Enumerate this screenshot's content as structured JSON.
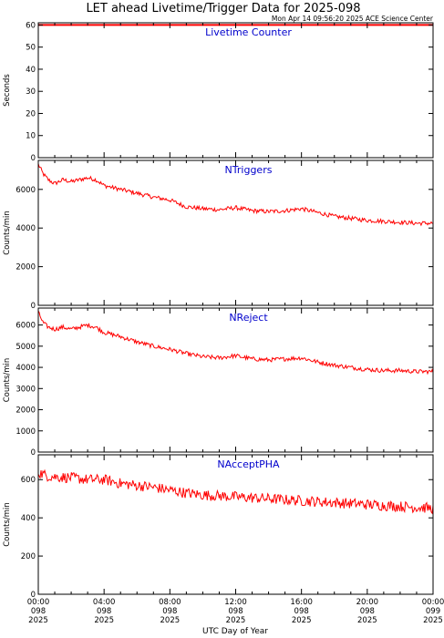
{
  "header": {
    "title": "LET ahead Livetime/Trigger Data for 2025-098",
    "timestamp": "Mon Apr 14 09:56:20 2025 ACE Science Center"
  },
  "colors": {
    "axis": "#000000",
    "series": "#ff0000",
    "panel_label": "#0000cc"
  },
  "chart_data": [
    {
      "type": "line",
      "title": "Livetime Counter",
      "ylabel": "Seconds",
      "ylim": [
        0,
        61
      ],
      "yticks": [
        0,
        10,
        20,
        30,
        40,
        50,
        60
      ],
      "series": [
        {
          "x": [
            0,
            24
          ],
          "y": [
            60,
            60
          ]
        }
      ]
    },
    {
      "type": "line",
      "title": "NTriggers",
      "ylabel": "Counts/min",
      "ylim": [
        0,
        7500
      ],
      "yticks": [
        0,
        2000,
        4000,
        6000
      ],
      "series": [
        {
          "x": [
            0,
            0.3,
            0.6,
            1.0,
            1.5,
            2.0,
            3.0,
            3.5,
            4.0,
            5.0,
            6.0,
            7.0,
            8.0,
            9.0,
            10.0,
            11.0,
            12.0,
            13.0,
            14.0,
            15.0,
            16.0,
            17.0,
            18.0,
            19.0,
            20.0,
            21.0,
            22.0,
            23.0,
            24.0
          ],
          "y": [
            7300,
            6800,
            6500,
            6300,
            6500,
            6400,
            6600,
            6500,
            6200,
            6000,
            5800,
            5600,
            5450,
            5100,
            5000,
            4950,
            5050,
            4900,
            4850,
            4900,
            5000,
            4800,
            4600,
            4500,
            4400,
            4350,
            4300,
            4250,
            4250
          ]
        }
      ]
    },
    {
      "type": "line",
      "title": "NReject",
      "ylabel": "Counts/min",
      "ylim": [
        0,
        6800
      ],
      "yticks": [
        0,
        1000,
        2000,
        3000,
        4000,
        5000,
        6000
      ],
      "series": [
        {
          "x": [
            0,
            0.3,
            0.6,
            1.0,
            1.5,
            2.0,
            3.0,
            3.5,
            4.0,
            5.0,
            6.0,
            7.0,
            8.0,
            9.0,
            10.0,
            11.0,
            12.0,
            13.0,
            14.0,
            15.0,
            16.0,
            17.0,
            18.0,
            19.0,
            20.0,
            21.0,
            22.0,
            23.0,
            24.0
          ],
          "y": [
            6600,
            6100,
            5900,
            5800,
            5900,
            5800,
            6000,
            5900,
            5650,
            5450,
            5200,
            5000,
            4850,
            4650,
            4500,
            4450,
            4550,
            4400,
            4350,
            4400,
            4450,
            4250,
            4100,
            4000,
            3900,
            3850,
            3850,
            3800,
            3800
          ]
        }
      ]
    },
    {
      "type": "line",
      "title": "NAcceptPHA",
      "ylabel": "Counts/min",
      "ylim": [
        0,
        730
      ],
      "yticks": [
        0,
        200,
        400,
        600
      ],
      "series": [
        {
          "x": [
            0,
            0.5,
            1.0,
            2.0,
            3.0,
            4.0,
            5.0,
            6.0,
            7.0,
            8.0,
            9.0,
            10.0,
            11.0,
            12.0,
            13.0,
            14.0,
            15.0,
            16.0,
            17.0,
            18.0,
            19.0,
            20.0,
            21.0,
            22.0,
            23.0,
            24.0
          ],
          "y": [
            640,
            620,
            615,
            610,
            600,
            600,
            580,
            570,
            560,
            545,
            530,
            520,
            515,
            510,
            505,
            500,
            495,
            490,
            485,
            480,
            475,
            470,
            465,
            460,
            455,
            450
          ]
        }
      ]
    }
  ],
  "x_axis": {
    "label": "UTC Day of Year",
    "xlim": [
      0,
      24
    ],
    "ticks": [
      {
        "value": 0,
        "time": "00:00",
        "doy": "098",
        "year": "2025"
      },
      {
        "value": 4,
        "time": "04:00",
        "doy": "098",
        "year": "2025"
      },
      {
        "value": 8,
        "time": "08:00",
        "doy": "098",
        "year": "2025"
      },
      {
        "value": 12,
        "time": "12:00",
        "doy": "098",
        "year": "2025"
      },
      {
        "value": 16,
        "time": "16:00",
        "doy": "098",
        "year": "2025"
      },
      {
        "value": 20,
        "time": "20:00",
        "doy": "098",
        "year": "2025"
      },
      {
        "value": 24,
        "time": "00:00",
        "doy": "099",
        "year": "2025"
      }
    ]
  }
}
